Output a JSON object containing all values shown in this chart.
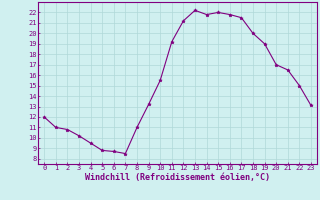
{
  "x": [
    0,
    1,
    2,
    3,
    4,
    5,
    6,
    7,
    8,
    9,
    10,
    11,
    12,
    13,
    14,
    15,
    16,
    17,
    18,
    19,
    20,
    21,
    22,
    23
  ],
  "y": [
    12,
    11,
    10.8,
    10.2,
    9.5,
    8.8,
    8.7,
    8.5,
    11,
    13.2,
    15.5,
    19.2,
    21.2,
    22.2,
    21.8,
    22,
    21.8,
    21.5,
    20,
    19,
    17,
    16.5,
    15,
    13.1
  ],
  "line_color": "#800080",
  "marker": "*",
  "marker_size": 2.5,
  "bg_color": "#d0f0f0",
  "grid_color": "#b0d8d8",
  "xlabel": "Windchill (Refroidissement éolien,°C)",
  "xlabel_fontsize": 6.0,
  "ylim": [
    7.5,
    23
  ],
  "xlim": [
    -0.5,
    23.5
  ],
  "yticks": [
    8,
    9,
    10,
    11,
    12,
    13,
    14,
    15,
    16,
    17,
    18,
    19,
    20,
    21,
    22
  ],
  "xticks": [
    0,
    1,
    2,
    3,
    4,
    5,
    6,
    7,
    8,
    9,
    10,
    11,
    12,
    13,
    14,
    15,
    16,
    17,
    18,
    19,
    20,
    21,
    22,
    23
  ],
  "tick_color": "#800080",
  "tick_fontsize": 5.0,
  "spine_color": "#800080",
  "linewidth": 0.8
}
